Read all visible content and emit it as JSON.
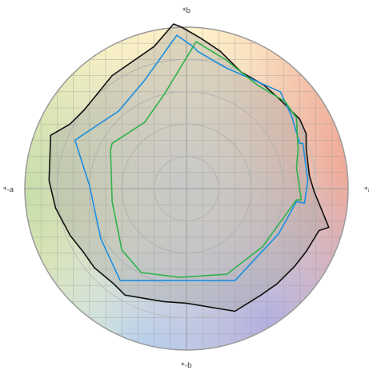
{
  "chart_data": {
    "type": "radar",
    "title": "",
    "axis_labels": {
      "top": "*b",
      "bottom": "*-b",
      "left": "*-a",
      "right": "*a"
    },
    "x_range": [
      -1,
      1
    ],
    "y_range": [
      -1,
      1
    ],
    "grid": true,
    "ring_radii": [
      0.2,
      0.4,
      0.6,
      0.8
    ],
    "grid_step": 0.1,
    "legend": "none",
    "colors": {
      "series_black": "#111111",
      "series_blue": "#1a8fe0",
      "series_green": "#2eb34a",
      "fill_grey": "#9a9a9a",
      "circle_border": "#9a9a9a",
      "grid": "#9a9a9a",
      "rings": "#bdbdbd"
    },
    "series": [
      {
        "color": "#111111",
        "filled": true,
        "points": [
          [
            -0.08,
            1.02
          ],
          [
            -0.2,
            0.88
          ],
          [
            -0.46,
            0.7
          ],
          [
            -0.63,
            0.49
          ],
          [
            -0.72,
            0.4
          ],
          [
            -0.84,
            0.33
          ],
          [
            -0.85,
            0.05
          ],
          [
            -0.81,
            -0.12
          ],
          [
            -0.72,
            -0.29
          ],
          [
            -0.64,
            -0.39
          ],
          [
            -0.57,
            -0.49
          ],
          [
            -0.45,
            -0.59
          ],
          [
            -0.38,
            -0.66
          ],
          [
            -0.14,
            -0.7
          ],
          [
            0.0,
            -0.71
          ],
          [
            0.3,
            -0.76
          ],
          [
            0.46,
            -0.66
          ],
          [
            0.56,
            -0.59
          ],
          [
            0.67,
            -0.48
          ],
          [
            0.74,
            -0.39
          ],
          [
            0.82,
            -0.26
          ],
          [
            0.88,
            -0.24
          ],
          [
            0.79,
            -0.02
          ],
          [
            0.76,
            0.08
          ],
          [
            0.74,
            0.25
          ],
          [
            0.74,
            0.34
          ],
          [
            0.7,
            0.43
          ],
          [
            0.58,
            0.55
          ],
          [
            0.48,
            0.64
          ],
          [
            0.34,
            0.72
          ],
          [
            0.21,
            0.85
          ],
          [
            0.09,
            0.93
          ],
          [
            -0.03,
            1.0
          ],
          [
            -0.08,
            1.02
          ]
        ]
      },
      {
        "color": "#1a8fe0",
        "filled": false,
        "points": [
          [
            -0.06,
            0.95
          ],
          [
            -0.26,
            0.67
          ],
          [
            -0.42,
            0.48
          ],
          [
            -0.69,
            0.3
          ],
          [
            -0.6,
            0.02
          ],
          [
            -0.53,
            -0.31
          ],
          [
            -0.41,
            -0.57
          ],
          [
            0.3,
            -0.57
          ],
          [
            0.57,
            -0.28
          ],
          [
            0.68,
            -0.08
          ],
          [
            0.73,
            -0.09
          ],
          [
            0.75,
            0.05
          ],
          [
            0.72,
            0.28
          ],
          [
            0.7,
            0.28
          ],
          [
            0.65,
            0.45
          ],
          [
            0.58,
            0.6
          ],
          [
            0.24,
            0.75
          ],
          [
            0.07,
            0.85
          ],
          [
            0.04,
            0.88
          ],
          [
            -0.06,
            0.95
          ]
        ]
      },
      {
        "color": "#2eb34a",
        "filled": false,
        "points": [
          [
            0.06,
            0.91
          ],
          [
            -0.14,
            0.58
          ],
          [
            -0.26,
            0.41
          ],
          [
            -0.46,
            0.28
          ],
          [
            -0.47,
            0.24
          ],
          [
            -0.46,
            -0.08
          ],
          [
            -0.4,
            -0.38
          ],
          [
            -0.28,
            -0.52
          ],
          [
            -0.04,
            -0.55
          ],
          [
            0.25,
            -0.53
          ],
          [
            0.47,
            -0.36
          ],
          [
            0.68,
            -0.07
          ],
          [
            0.71,
            -0.07
          ],
          [
            0.68,
            0.13
          ],
          [
            0.69,
            0.24
          ],
          [
            0.68,
            0.44
          ],
          [
            0.65,
            0.48
          ],
          [
            0.61,
            0.54
          ],
          [
            0.44,
            0.64
          ],
          [
            0.24,
            0.8
          ],
          [
            0.06,
            0.91
          ]
        ]
      }
    ]
  }
}
